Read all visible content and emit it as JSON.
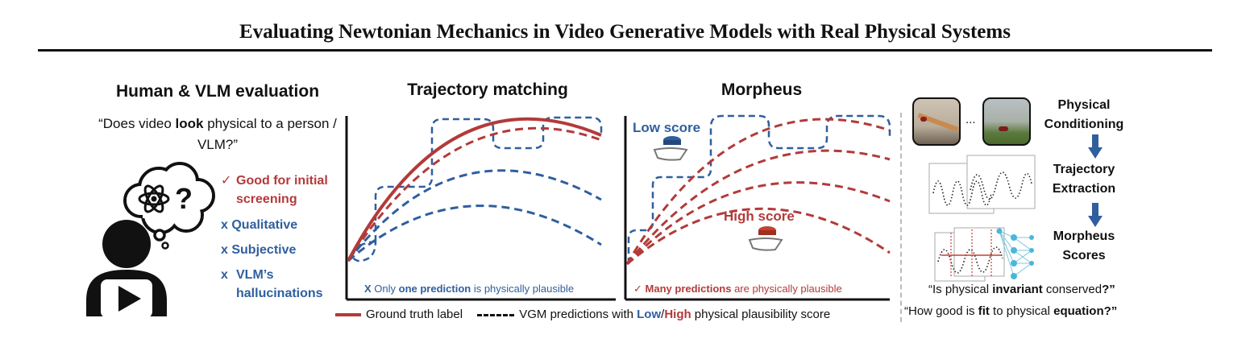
{
  "title": "Evaluating Newtonian Mechanics in Video Generative Models with Real Physical Systems",
  "human_panel": {
    "heading": "Human & VLM evaluation",
    "question_parts": [
      "“Does video ",
      "look",
      " physical to a person / VLM?”"
    ],
    "pro_mark": "✓",
    "pro": "Good for initial screening",
    "con_mark": "x",
    "cons": [
      "Qualitative",
      "Subjective",
      "VLM’s hallucinations"
    ]
  },
  "trajectory_panel": {
    "heading": "Trajectory matching",
    "note_mark": "X",
    "note_parts": [
      "Only ",
      "one prediction",
      " is physically plausible"
    ]
  },
  "morpheus_panel": {
    "heading": "Morpheus",
    "low_label": "Low score",
    "high_label": "High score",
    "note_mark": "✓",
    "note_parts": [
      "Many predictions",
      " are physically plausible"
    ]
  },
  "legend": {
    "ground_truth": "Ground truth label",
    "vgm_parts": [
      "VGM predictions with ",
      "Low",
      "/",
      "High",
      " physical plausibility score"
    ]
  },
  "pipeline": {
    "ellipsis": "...",
    "steps": [
      {
        "line1": "Physical",
        "line2": "Conditioning"
      },
      {
        "line1": "Trajectory",
        "line2": "Extraction"
      },
      {
        "line1": "Morpheus",
        "line2": "Scores"
      }
    ],
    "q1_parts": [
      "“Is physical ",
      "invariant",
      " conserved",
      "?”"
    ],
    "q2_parts": [
      "“How good is ",
      "fit",
      " to physical ",
      "equation?”"
    ]
  },
  "colors": {
    "red": "#b33a3a",
    "blue": "#2f5f9e",
    "dark": "#111111",
    "cyan": "#4ab7d8"
  }
}
